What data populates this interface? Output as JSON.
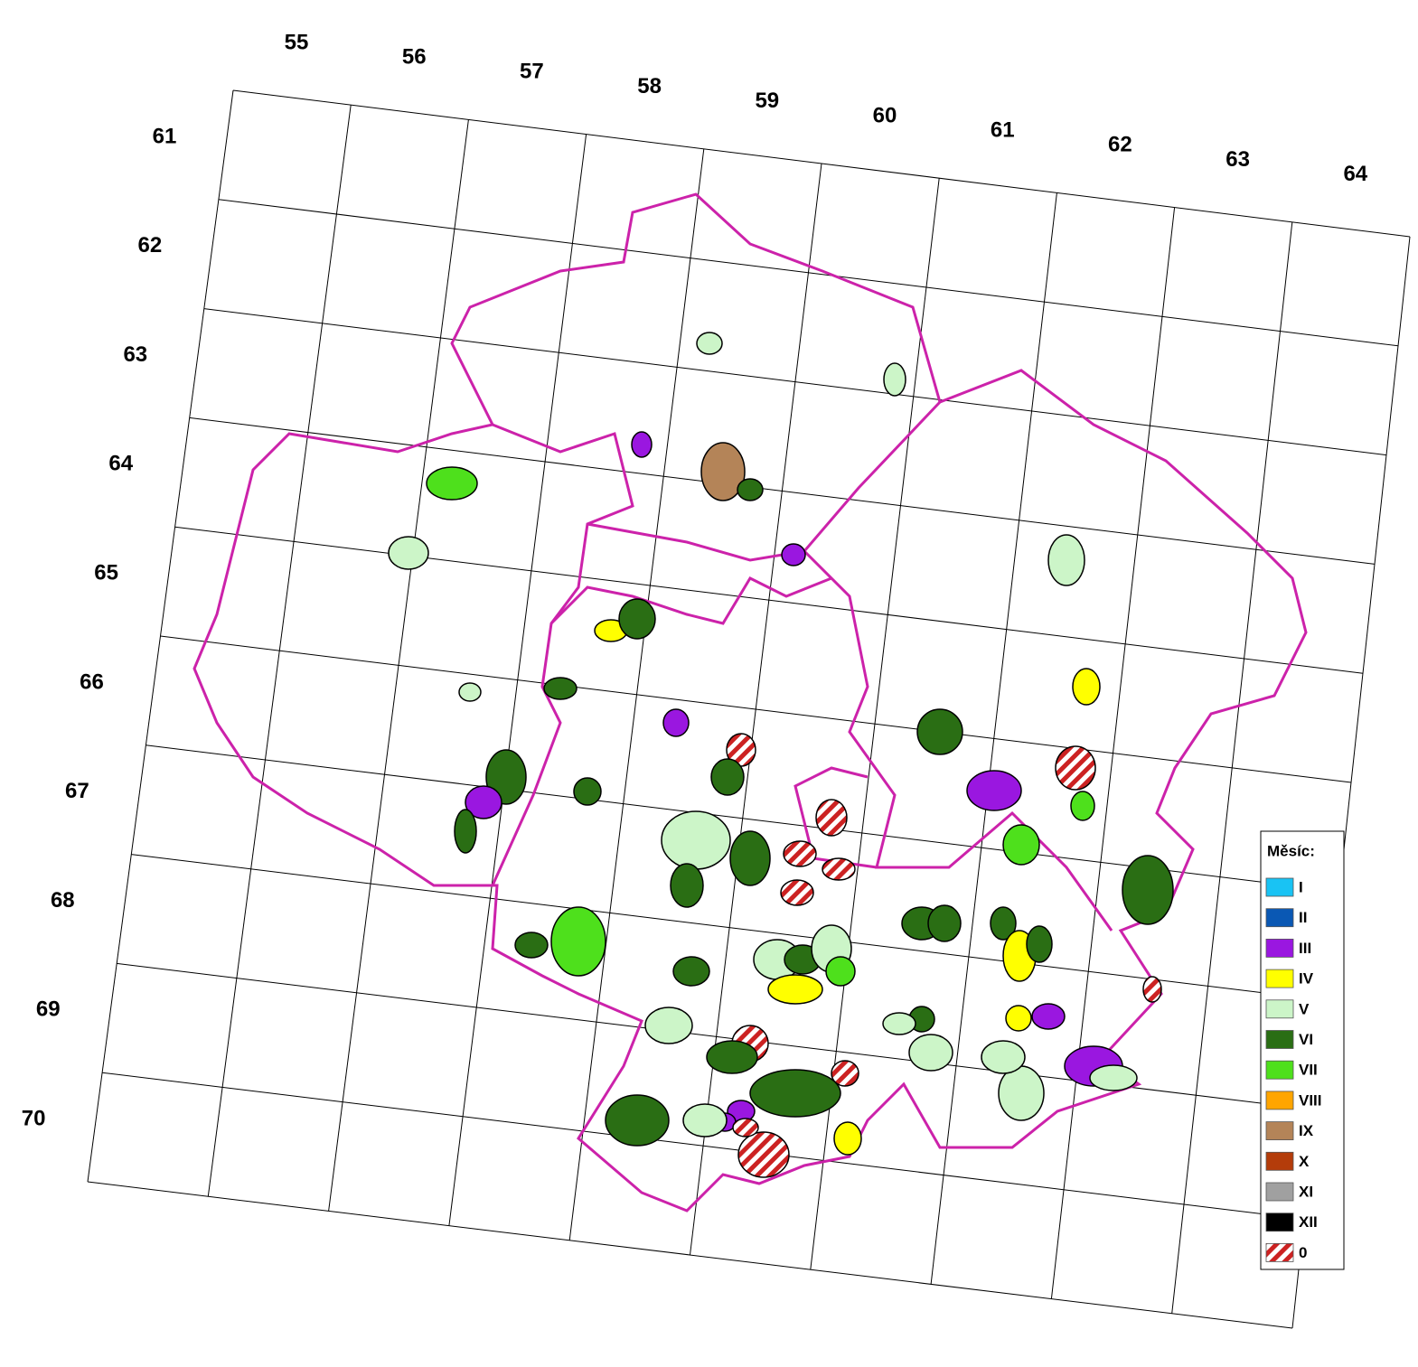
{
  "column_labels": [
    55,
    56,
    57,
    58,
    59,
    60,
    61,
    62,
    63,
    64
  ],
  "row_labels": [
    61,
    62,
    63,
    64,
    65,
    66,
    67,
    68,
    69,
    70
  ],
  "legend": {
    "title": "Měsíc:",
    "items": [
      {
        "label": "I",
        "color": "#19c3f4"
      },
      {
        "label": "II",
        "color": "#0a58b4"
      },
      {
        "label": "III",
        "color": "#9a17e0"
      },
      {
        "label": "IV",
        "color": "#ffff00"
      },
      {
        "label": "V",
        "color": "#ccf5c8"
      },
      {
        "label": "VI",
        "color": "#2a6e14"
      },
      {
        "label": "VII",
        "color": "#4ee01c"
      },
      {
        "label": "VIII",
        "color": "#ffa500"
      },
      {
        "label": "IX",
        "color": "#b48458"
      },
      {
        "label": "X",
        "color": "#b43c0a"
      },
      {
        "label": "XI",
        "color": "#a0a0a0"
      },
      {
        "label": "XII",
        "color": "#000000"
      },
      {
        "label": "0",
        "color": "#cc2222",
        "pattern": "hatch"
      }
    ]
  }
}
